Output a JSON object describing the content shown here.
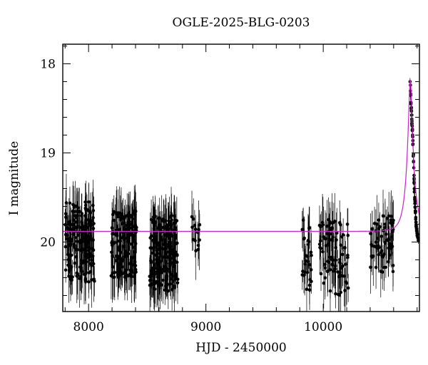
{
  "chart_data": {
    "type": "scatter",
    "title": "OGLE-2025-BLG-0203",
    "xlabel": "HJD - 2450000",
    "ylabel": "I magnitude",
    "xlim": [
      7780,
      10820
    ],
    "ylim": [
      20.78,
      17.78
    ],
    "y_inverted": true,
    "grid": false,
    "x_ticks": [
      8000,
      9000,
      10000
    ],
    "y_ticks": [
      18,
      19,
      20
    ],
    "series": [
      {
        "kind": "points_with_errorbars",
        "color": "#000000",
        "baseline_mag": 19.9,
        "segments": [
          {
            "x": [
              7800,
              8050
            ],
            "mag_min": 19.55,
            "mag_max": 20.45,
            "density": 180
          },
          {
            "x": [
              8190,
              8410
            ],
            "mag_min": 19.65,
            "mag_max": 20.4,
            "density": 170
          },
          {
            "x": [
              8520,
              8760
            ],
            "mag_min": 19.7,
            "mag_max": 20.55,
            "density": 200
          },
          {
            "x": [
              8880,
              8950
            ],
            "mag_min": 19.7,
            "mag_max": 20.1,
            "density": 14
          },
          {
            "x": [
              9820,
              9900
            ],
            "mag_min": 19.75,
            "mag_max": 20.6,
            "density": 30
          },
          {
            "x": [
              9960,
              10220
            ],
            "mag_min": 19.75,
            "mag_max": 20.6,
            "density": 90
          },
          {
            "x": [
              10400,
              10600
            ],
            "mag_min": 19.7,
            "mag_max": 20.35,
            "density": 70
          }
        ],
        "event_points": [
          [
            10740,
            18.2
          ],
          [
            10745,
            18.35
          ],
          [
            10750,
            18.5
          ],
          [
            10755,
            18.62
          ],
          [
            10760,
            18.75
          ],
          [
            10765,
            18.9
          ],
          [
            10770,
            19.1
          ],
          [
            10775,
            19.3
          ],
          [
            10780,
            19.5
          ],
          [
            10785,
            19.65
          ],
          [
            10790,
            19.78
          ],
          [
            10795,
            19.85
          ],
          [
            10800,
            19.9
          ],
          [
            10805,
            19.95
          ],
          [
            10810,
            19.98
          ]
        ]
      },
      {
        "kind": "model_curve",
        "color": "#cc22cc",
        "baseline_mag": 19.88,
        "t0": 10742,
        "peak_mag": 18.18,
        "tE": 60
      }
    ]
  }
}
